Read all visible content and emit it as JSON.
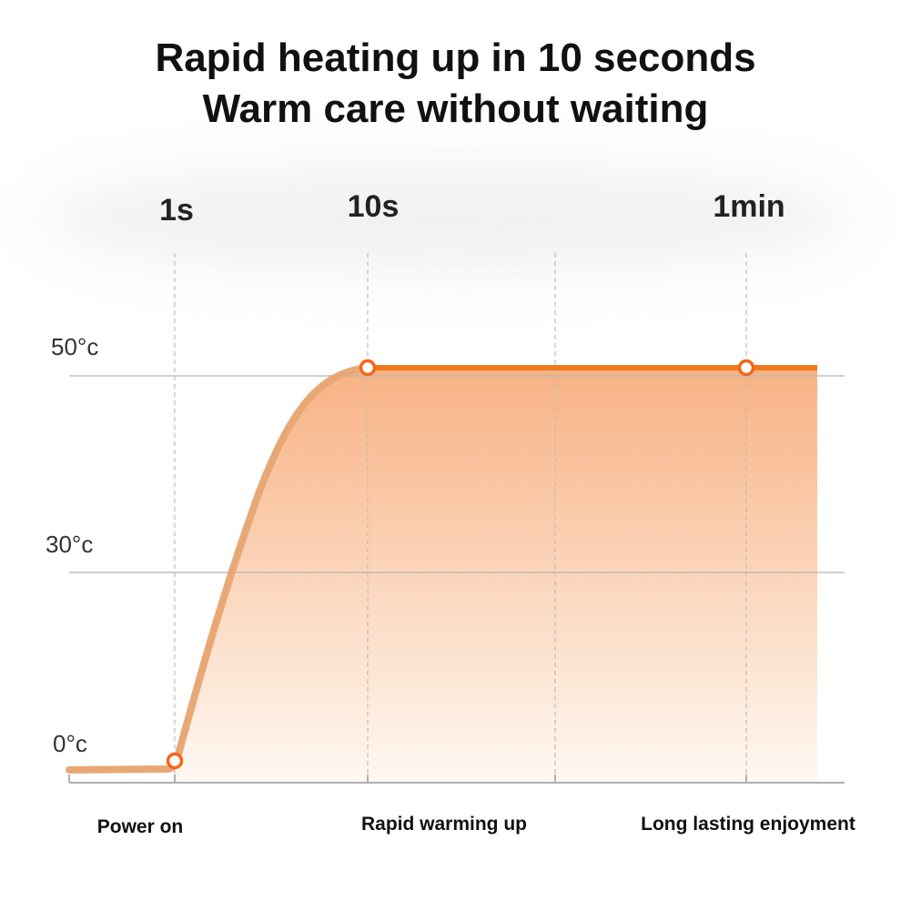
{
  "title": {
    "line1": "Rapid heating up in 10 seconds",
    "line2": "Warm care without waiting"
  },
  "chart_data": {
    "type": "area",
    "title": "Rapid heating up in 10 seconds / Warm care without waiting",
    "x_tick_labels": [
      "1s",
      "10s",
      "1min"
    ],
    "y_tick_labels": [
      "50°c",
      "30°c",
      "0°c"
    ],
    "y_ticks": [
      50,
      30,
      0
    ],
    "ylim": [
      0,
      50
    ],
    "grid": true,
    "stage_labels": [
      "Power on",
      "Rapid warming up",
      "Long lasting enjoyment"
    ],
    "marked_points": [
      {
        "x": "1s",
        "y": 0
      },
      {
        "x": "10s",
        "y": 50
      },
      {
        "x": "1min",
        "y": 50
      }
    ],
    "colors": {
      "line_rise": "#e8a875",
      "line_plateau": "#f07a1e",
      "marker": "#f5661a",
      "fill_top": "#f7b283",
      "fill_bottom": "#fff8f2"
    }
  }
}
